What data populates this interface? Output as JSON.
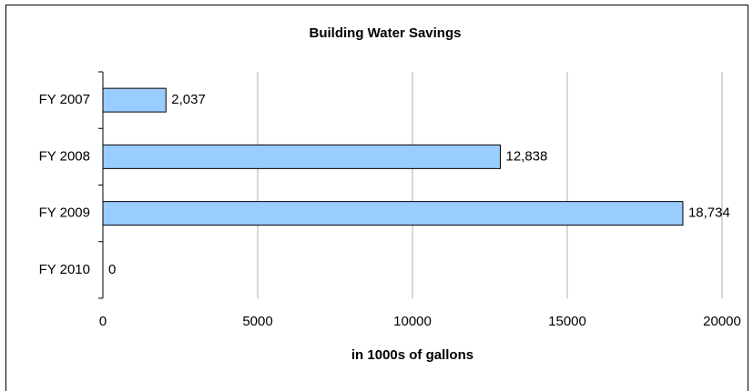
{
  "chart_data": {
    "type": "bar",
    "orientation": "horizontal",
    "title": "Building Water Savings",
    "categories": [
      "FY 2007",
      "FY 2008",
      "FY 2009",
      "FY 2010"
    ],
    "values": [
      2037,
      12838,
      18734,
      0
    ],
    "value_labels": [
      "2,037",
      "12,838",
      "18,734",
      "0"
    ],
    "color": "#99ccff",
    "xlabel": "in 1000s of gallons",
    "xlim": [
      0,
      20000
    ],
    "xticks": [
      0,
      5000,
      10000,
      15000,
      20000
    ],
    "grid": true
  }
}
